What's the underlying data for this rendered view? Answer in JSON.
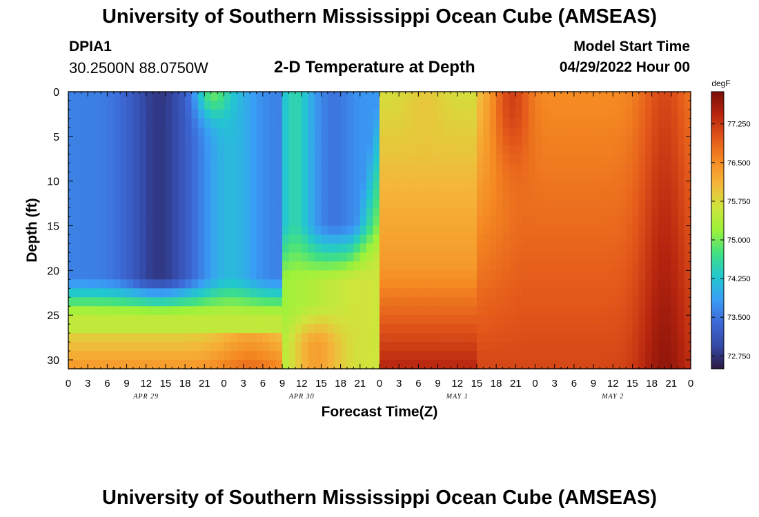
{
  "header": {
    "title": "University of Southern Mississippi Ocean Cube (AMSEAS)",
    "station": "DPIA1",
    "coordinates": "30.2500N  88.0750W",
    "plot_title": "2-D Temperature at Depth",
    "start_label": "Model Start Time",
    "start_value": "04/29/2022 Hour 00"
  },
  "footer": {
    "title": "University of Southern Mississippi Ocean Cube (AMSEAS)"
  },
  "colors": {
    "scale": [
      "#2a1740",
      "#3449a6",
      "#3d68d6",
      "#3a9ef5",
      "#22c7cf",
      "#42e082",
      "#9cf23a",
      "#cfe53c",
      "#f5b53a",
      "#f58a22",
      "#e2561a",
      "#b8260f",
      "#7a0d07"
    ]
  },
  "chart_data": {
    "type": "heatmap",
    "xlabel": "Forecast Time(Z)",
    "ylabel": "Depth (ft)",
    "x_range": [
      0,
      96
    ],
    "y_range": [
      0,
      31
    ],
    "x_tick_labels": [
      "0",
      "3",
      "6",
      "9",
      "12",
      "15",
      "18",
      "21",
      "0",
      "3",
      "6",
      "9",
      "12",
      "15",
      "18",
      "21",
      "0",
      "3",
      "6",
      "9",
      "12",
      "15",
      "18",
      "21",
      "0",
      "3",
      "6",
      "9",
      "12",
      "15",
      "18",
      "21",
      "0"
    ],
    "date_labels": [
      {
        "label": "APR 29",
        "hour": 12
      },
      {
        "label": "APR 30",
        "hour": 36
      },
      {
        "label": "MAY 1",
        "hour": 60
      },
      {
        "label": "MAY 2",
        "hour": 84
      }
    ],
    "y_ticks": [
      0,
      5,
      10,
      15,
      20,
      25,
      30
    ],
    "colorbar": {
      "unit": "degF",
      "range": [
        72.5,
        77.875
      ],
      "ticks": [
        "77.250",
        "76.500",
        "75.750",
        "75.000",
        "74.250",
        "73.500",
        "72.750"
      ]
    }
  }
}
